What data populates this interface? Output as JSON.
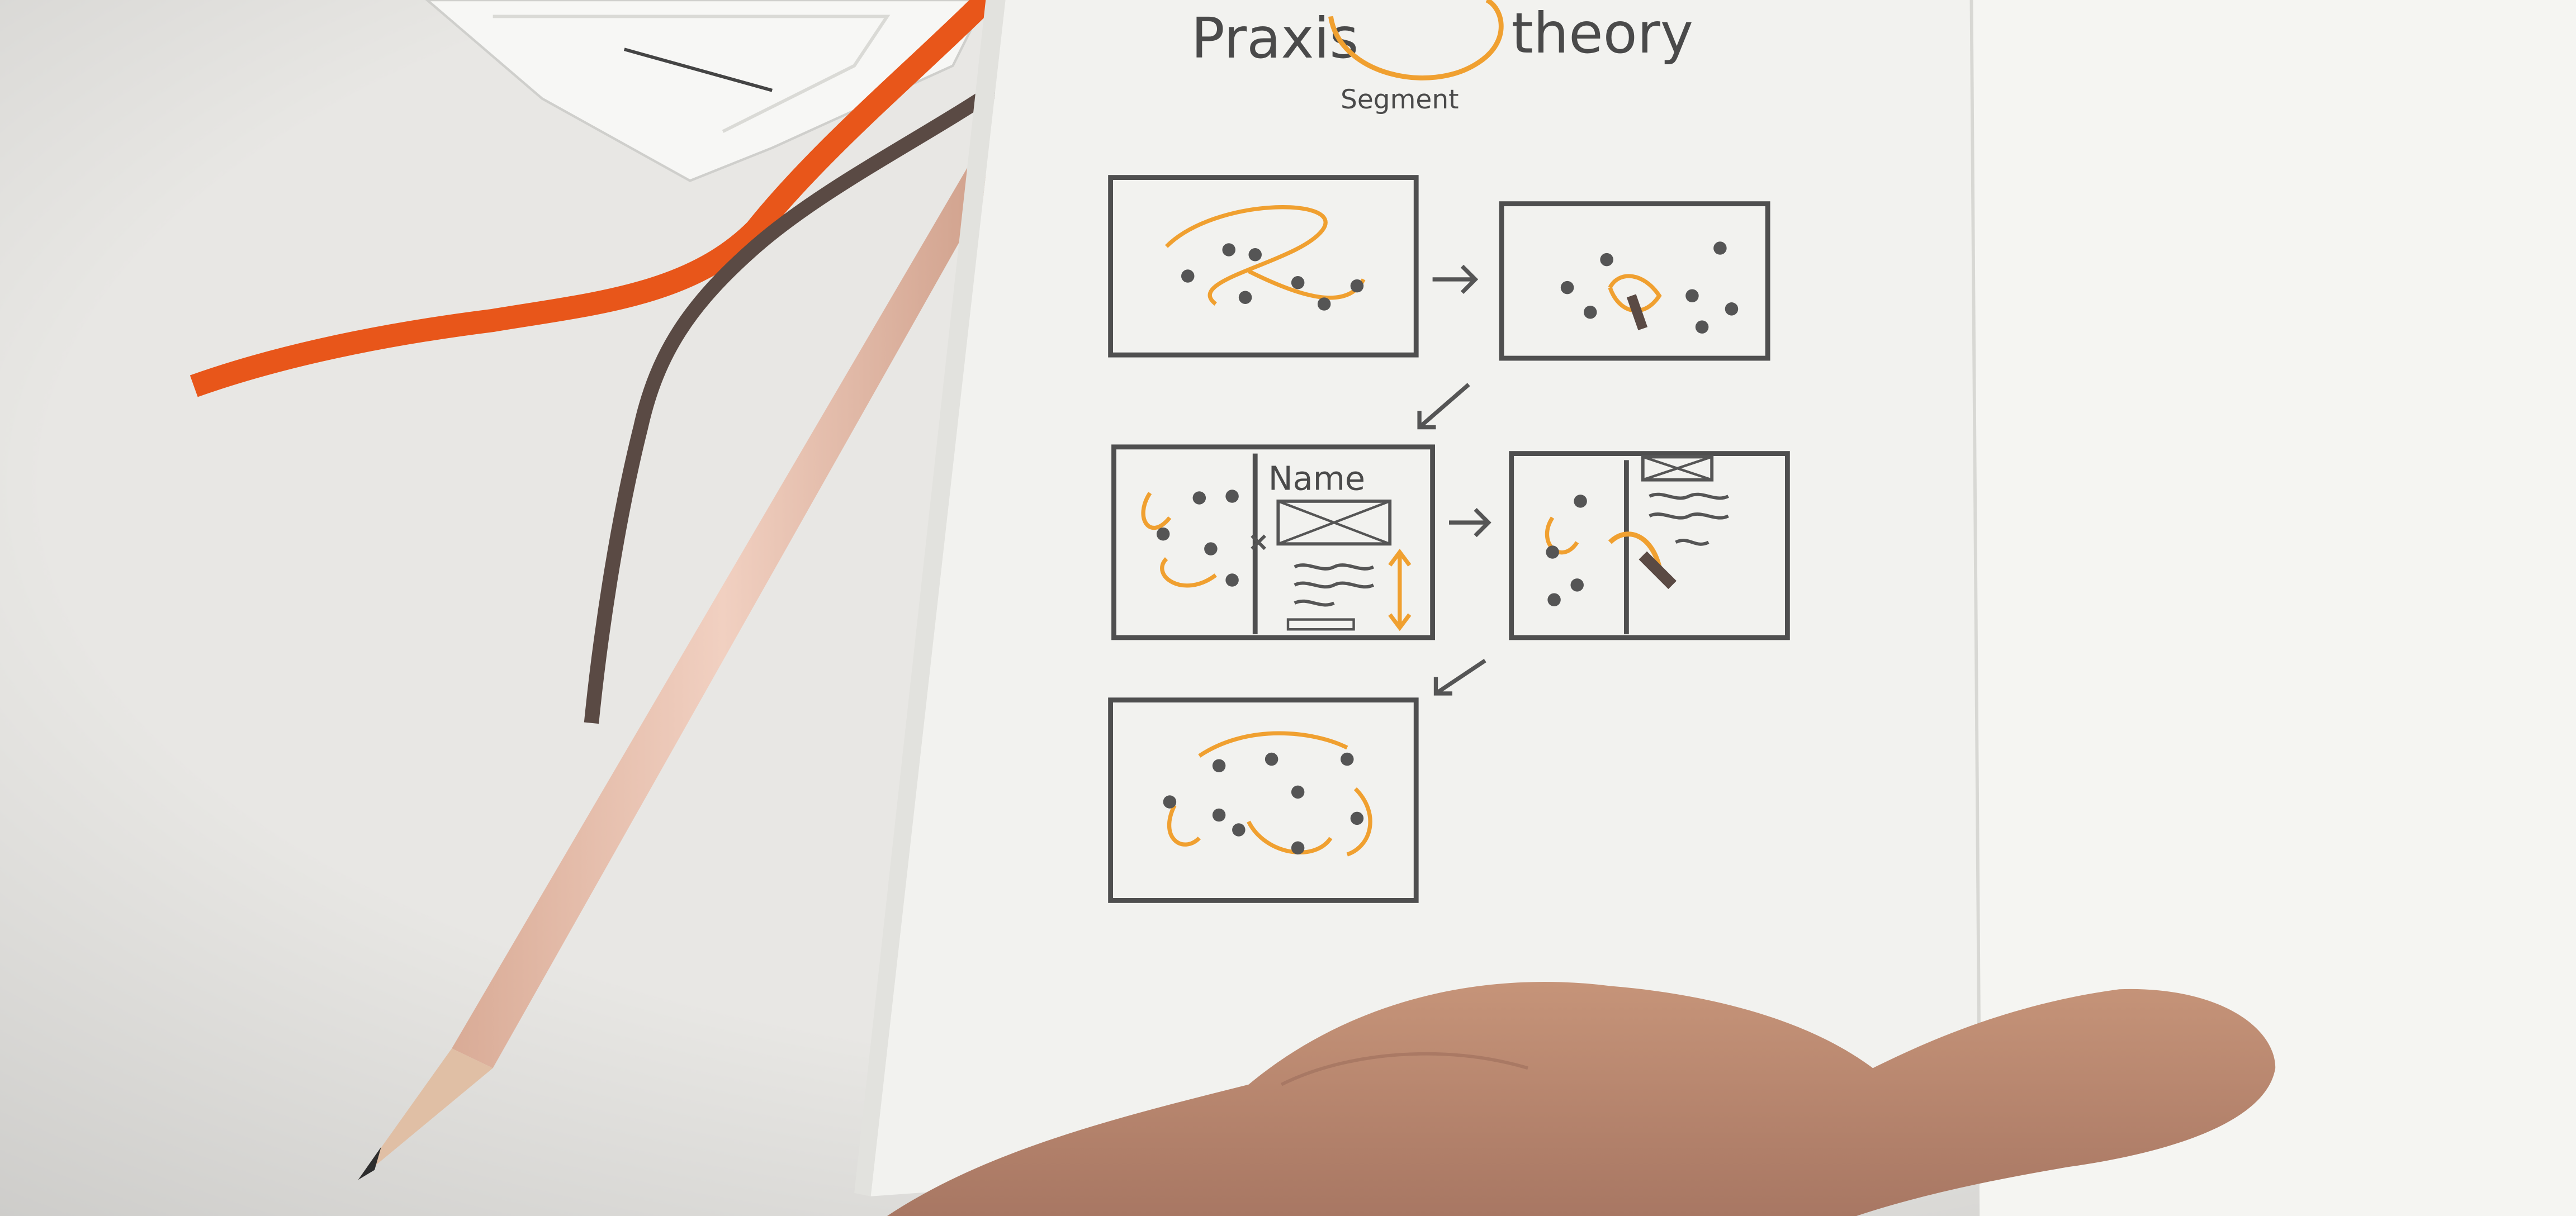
{
  "sketch": {
    "title_left": "Praxis",
    "title_right": "theory",
    "title_middle": "Segment",
    "panel_label_name": "Name"
  },
  "colors": {
    "desk": "#e9e7e3",
    "paper": "#f3f3f0",
    "pencil_line": "#4a4a4a",
    "orange_marker": "#f0a030",
    "ribbon_orange": "#e8561a",
    "ribbon_dark": "#5a4a44",
    "pencil_wood": "#e6c2b2",
    "skin": "#c99a84"
  }
}
